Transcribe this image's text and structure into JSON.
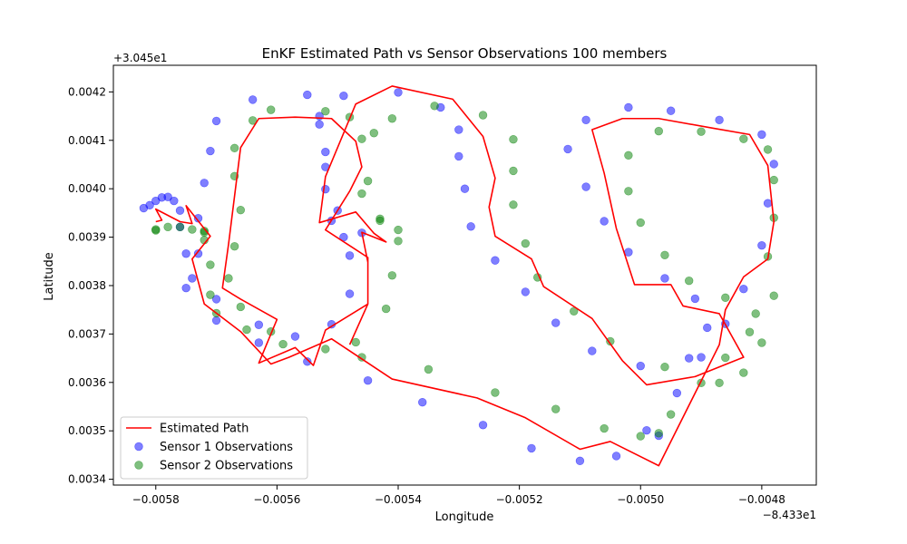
{
  "chart_data": {
    "type": "scatter",
    "title": "EnKF Estimated Path vs Sensor Observations 100 members",
    "xlabel": "Longitude",
    "ylabel": "Latitude",
    "x_offset_label": "−8.433e1",
    "y_offset_label": "+3.045e1",
    "xlim": [
      -0.00587,
      -0.00471
    ],
    "ylim": [
      0.003388,
      0.004255
    ],
    "x_ticks": [
      -0.0058,
      -0.0056,
      -0.0054,
      -0.0052,
      -0.005,
      -0.0048
    ],
    "x_tick_labels": [
      "−0.0058",
      "−0.0056",
      "−0.0054",
      "−0.0052",
      "−0.0050",
      "−0.0048"
    ],
    "y_ticks": [
      0.0034,
      0.0035,
      0.0036,
      0.0037,
      0.0038,
      0.0039,
      0.004,
      0.0041,
      0.0042
    ],
    "y_tick_labels": [
      "0.0034",
      "0.0035",
      "0.0036",
      "0.0037",
      "0.0038",
      "0.0039",
      "0.0040",
      "0.0041",
      "0.0042"
    ],
    "grid": false,
    "legend_position": "lower-left",
    "series": [
      {
        "name": "Estimated Path",
        "kind": "line",
        "color": "#ff0000",
        "points": [
          [
            -0.0058,
            0.003932
          ],
          [
            -0.00579,
            0.003935
          ],
          [
            -0.0058,
            0.003958
          ],
          [
            -0.00576,
            0.003932
          ],
          [
            -0.00574,
            0.003928
          ],
          [
            -0.00575,
            0.003965
          ],
          [
            -0.00571,
            0.003902
          ],
          [
            -0.00574,
            0.003855
          ],
          [
            -0.00572,
            0.003762
          ],
          [
            -0.00566,
            0.003705
          ],
          [
            -0.00561,
            0.003638
          ],
          [
            -0.00558,
            0.003652
          ],
          [
            -0.00551,
            0.00369
          ],
          [
            -0.00541,
            0.003607
          ],
          [
            -0.00527,
            0.003568
          ],
          [
            -0.00519,
            0.003527
          ],
          [
            -0.0051,
            0.003462
          ],
          [
            -0.00505,
            0.003478
          ],
          [
            -0.00497,
            0.003428
          ],
          [
            -0.00487,
            0.003678
          ],
          [
            -0.00486,
            0.00375
          ],
          [
            -0.00483,
            0.003818
          ],
          [
            -0.00479,
            0.003855
          ],
          [
            -0.00478,
            0.003932
          ],
          [
            -0.00479,
            0.004048
          ],
          [
            -0.00482,
            0.004112
          ],
          [
            -0.00488,
            0.004125
          ],
          [
            -0.00497,
            0.004145
          ],
          [
            -0.00503,
            0.004145
          ],
          [
            -0.00508,
            0.004122
          ],
          [
            -0.00506,
            0.004032
          ],
          [
            -0.00504,
            0.003918
          ],
          [
            -0.00501,
            0.003802
          ],
          [
            -0.00495,
            0.003802
          ],
          [
            -0.00493,
            0.003758
          ],
          [
            -0.00487,
            0.003742
          ],
          [
            -0.00483,
            0.003652
          ],
          [
            -0.00491,
            0.003612
          ],
          [
            -0.00499,
            0.003595
          ],
          [
            -0.00503,
            0.003645
          ],
          [
            -0.00508,
            0.003732
          ],
          [
            -0.00516,
            0.003798
          ],
          [
            -0.00518,
            0.003855
          ],
          [
            -0.00524,
            0.003902
          ],
          [
            -0.00525,
            0.003962
          ],
          [
            -0.00524,
            0.004022
          ],
          [
            -0.00526,
            0.004108
          ],
          [
            -0.00531,
            0.004185
          ],
          [
            -0.00541,
            0.004212
          ],
          [
            -0.00547,
            0.004175
          ],
          [
            -0.00552,
            0.004025
          ],
          [
            -0.00553,
            0.00393
          ],
          [
            -0.00547,
            0.003952
          ],
          [
            -0.00544,
            0.003908
          ],
          [
            -0.00542,
            0.00389
          ],
          [
            -0.00546,
            0.00391
          ],
          [
            -0.00545,
            0.003848
          ],
          [
            -0.00545,
            0.003762
          ],
          [
            -0.00552,
            0.003708
          ],
          [
            -0.00554,
            0.003635
          ],
          [
            -0.00557,
            0.003672
          ],
          [
            -0.00563,
            0.00364
          ],
          [
            -0.0056,
            0.00373
          ],
          [
            -0.00566,
            0.003772
          ],
          [
            -0.00569,
            0.003795
          ],
          [
            -0.00568,
            0.003885
          ],
          [
            -0.00566,
            0.004085
          ],
          [
            -0.00563,
            0.004145
          ],
          [
            -0.00557,
            0.004148
          ],
          [
            -0.00551,
            0.004145
          ],
          [
            -0.00547,
            0.004098
          ],
          [
            -0.00546,
            0.004045
          ],
          [
            -0.00548,
            0.003995
          ],
          [
            -0.00552,
            0.003915
          ],
          [
            -0.00545,
            0.003858
          ],
          [
            -0.00545,
            0.003762
          ],
          [
            -0.00548,
            0.003678
          ]
        ]
      },
      {
        "name": "Sensor 1 Observations",
        "kind": "scatter",
        "color": "#0000ff",
        "points": [
          [
            -0.00582,
            0.00396
          ],
          [
            -0.00581,
            0.003966
          ],
          [
            -0.0058,
            0.003975
          ],
          [
            -0.00579,
            0.003982
          ],
          [
            -0.00578,
            0.003983
          ],
          [
            -0.00577,
            0.003975
          ],
          [
            -0.00576,
            0.003955
          ],
          [
            -0.00576,
            0.003921
          ],
          [
            -0.00575,
            0.003866
          ],
          [
            -0.00575,
            0.003795
          ],
          [
            -0.00574,
            0.003815
          ],
          [
            -0.00573,
            0.003866
          ],
          [
            -0.00573,
            0.003939
          ],
          [
            -0.00572,
            0.004012
          ],
          [
            -0.00571,
            0.004078
          ],
          [
            -0.0057,
            0.00414
          ],
          [
            -0.0057,
            0.003728
          ],
          [
            -0.0057,
            0.003772
          ],
          [
            -0.00564,
            0.004184
          ],
          [
            -0.00563,
            0.003719
          ],
          [
            -0.00563,
            0.003682
          ],
          [
            -0.00557,
            0.003695
          ],
          [
            -0.00555,
            0.003643
          ],
          [
            -0.00555,
            0.004194
          ],
          [
            -0.00553,
            0.004133
          ],
          [
            -0.00553,
            0.00415
          ],
          [
            -0.00552,
            0.004076
          ],
          [
            -0.00552,
            0.004045
          ],
          [
            -0.00552,
            0.003999
          ],
          [
            -0.00551,
            0.003934
          ],
          [
            -0.00551,
            0.00372
          ],
          [
            -0.0055,
            0.003955
          ],
          [
            -0.00549,
            0.0039
          ],
          [
            -0.00549,
            0.004192
          ],
          [
            -0.00548,
            0.003862
          ],
          [
            -0.00548,
            0.003783
          ],
          [
            -0.00546,
            0.003909
          ],
          [
            -0.00545,
            0.003604
          ],
          [
            -0.0054,
            0.004199
          ],
          [
            -0.00536,
            0.003559
          ],
          [
            -0.00533,
            0.004168
          ],
          [
            -0.0053,
            0.004122
          ],
          [
            -0.0053,
            0.004067
          ],
          [
            -0.00529,
            0.004
          ],
          [
            -0.00528,
            0.003922
          ],
          [
            -0.00526,
            0.003512
          ],
          [
            -0.00524,
            0.003852
          ],
          [
            -0.00519,
            0.003787
          ],
          [
            -0.00518,
            0.003464
          ],
          [
            -0.00514,
            0.003723
          ],
          [
            -0.00512,
            0.004082
          ],
          [
            -0.0051,
            0.003438
          ],
          [
            -0.00509,
            0.004142
          ],
          [
            -0.00509,
            0.004004
          ],
          [
            -0.00508,
            0.003665
          ],
          [
            -0.00506,
            0.003933
          ],
          [
            -0.00504,
            0.003448
          ],
          [
            -0.00502,
            0.003869
          ],
          [
            -0.00502,
            0.004168
          ],
          [
            -0.005,
            0.003634
          ],
          [
            -0.00499,
            0.003501
          ],
          [
            -0.00497,
            0.00349
          ],
          [
            -0.00496,
            0.003815
          ],
          [
            -0.00495,
            0.004161
          ],
          [
            -0.00494,
            0.003578
          ],
          [
            -0.00492,
            0.00365
          ],
          [
            -0.00491,
            0.003773
          ],
          [
            -0.0049,
            0.003652
          ],
          [
            -0.00489,
            0.003713
          ],
          [
            -0.00487,
            0.004142
          ],
          [
            -0.00486,
            0.003721
          ],
          [
            -0.00483,
            0.003793
          ],
          [
            -0.0048,
            0.004112
          ],
          [
            -0.0048,
            0.003883
          ],
          [
            -0.00479,
            0.00397
          ],
          [
            -0.00478,
            0.004051
          ]
        ]
      },
      {
        "name": "Sensor 2 Observations",
        "kind": "scatter",
        "color": "#008000",
        "points": [
          [
            -0.0058,
            0.003914
          ],
          [
            -0.0058,
            0.003916
          ],
          [
            -0.00578,
            0.003921
          ],
          [
            -0.00576,
            0.003921
          ],
          [
            -0.00574,
            0.003916
          ],
          [
            -0.00572,
            0.003913
          ],
          [
            -0.00572,
            0.00391
          ],
          [
            -0.00572,
            0.003894
          ],
          [
            -0.00571,
            0.003843
          ],
          [
            -0.00571,
            0.003781
          ],
          [
            -0.0057,
            0.003743
          ],
          [
            -0.00568,
            0.003815
          ],
          [
            -0.00567,
            0.003881
          ],
          [
            -0.00567,
            0.004084
          ],
          [
            -0.00567,
            0.004026
          ],
          [
            -0.00566,
            0.003956
          ],
          [
            -0.00566,
            0.003756
          ],
          [
            -0.00565,
            0.003709
          ],
          [
            -0.00564,
            0.004141
          ],
          [
            -0.00561,
            0.004163
          ],
          [
            -0.00561,
            0.003705
          ],
          [
            -0.00559,
            0.003679
          ],
          [
            -0.00552,
            0.003669
          ],
          [
            -0.00552,
            0.00416
          ],
          [
            -0.00548,
            0.004148
          ],
          [
            -0.00547,
            0.003683
          ],
          [
            -0.00546,
            0.003652
          ],
          [
            -0.00546,
            0.004103
          ],
          [
            -0.00546,
            0.00399
          ],
          [
            -0.00545,
            0.004016
          ],
          [
            -0.00544,
            0.004115
          ],
          [
            -0.00543,
            0.003938
          ],
          [
            -0.00543,
            0.003934
          ],
          [
            -0.00542,
            0.003752
          ],
          [
            -0.00541,
            0.003821
          ],
          [
            -0.00541,
            0.004145
          ],
          [
            -0.0054,
            0.003915
          ],
          [
            -0.0054,
            0.003892
          ],
          [
            -0.00535,
            0.003627
          ],
          [
            -0.00534,
            0.004171
          ],
          [
            -0.00526,
            0.004152
          ],
          [
            -0.00524,
            0.003579
          ],
          [
            -0.00521,
            0.004102
          ],
          [
            -0.00521,
            0.004037
          ],
          [
            -0.00521,
            0.003967
          ],
          [
            -0.00519,
            0.003887
          ],
          [
            -0.00517,
            0.003817
          ],
          [
            -0.00514,
            0.003545
          ],
          [
            -0.00511,
            0.003747
          ],
          [
            -0.00506,
            0.003505
          ],
          [
            -0.00505,
            0.003685
          ],
          [
            -0.00502,
            0.004069
          ],
          [
            -0.00502,
            0.003995
          ],
          [
            -0.005,
            0.00393
          ],
          [
            -0.005,
            0.003489
          ],
          [
            -0.00497,
            0.004119
          ],
          [
            -0.00496,
            0.003863
          ],
          [
            -0.00496,
            0.003632
          ],
          [
            -0.00495,
            0.003534
          ],
          [
            -0.00492,
            0.00381
          ],
          [
            -0.0049,
            0.004118
          ],
          [
            -0.0049,
            0.003599
          ],
          [
            -0.00487,
            0.003599
          ],
          [
            -0.00486,
            0.003651
          ],
          [
            -0.00486,
            0.003775
          ],
          [
            -0.00483,
            0.00362
          ],
          [
            -0.00483,
            0.004103
          ],
          [
            -0.00482,
            0.003704
          ],
          [
            -0.00481,
            0.003742
          ],
          [
            -0.0048,
            0.003682
          ],
          [
            -0.00479,
            0.004081
          ],
          [
            -0.00479,
            0.00386
          ],
          [
            -0.00478,
            0.003779
          ],
          [
            -0.00478,
            0.00394
          ],
          [
            -0.00478,
            0.004018
          ],
          [
            -0.00497,
            0.003495
          ]
        ]
      }
    ]
  }
}
